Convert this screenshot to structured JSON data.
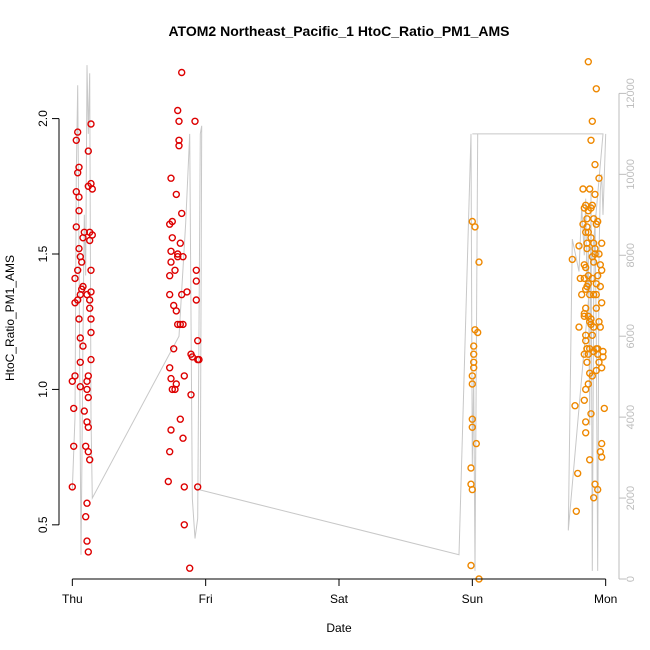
{
  "chart_data": {
    "type": "scatter",
    "title": "ATOM2 Northeast_Pacific_1 HtoC_Ratio_PM1_AMS",
    "xlabel": "Date",
    "ylabel": "HtoC_Ratio_PM1_AMS",
    "x_unit": "day",
    "x_ticks": [
      {
        "value": 0,
        "label": "Thu"
      },
      {
        "value": 1,
        "label": "Fri"
      },
      {
        "value": 2,
        "label": "Sat"
      },
      {
        "value": 3,
        "label": "Sun"
      },
      {
        "value": 4,
        "label": "Mon"
      }
    ],
    "xlim": [
      -0.1,
      4.1
    ],
    "ylim": [
      0.3,
      2.22
    ],
    "y_ticks": [
      0.5,
      1.0,
      1.5,
      2.0
    ],
    "y_tick_labels": [
      "0.5",
      "1.0",
      "1.5",
      "2.0"
    ],
    "y2_ticks": [
      0,
      2000,
      4000,
      6000,
      8000,
      10000,
      12000
    ],
    "y2_tick_labels": [
      "0",
      "2000",
      "4000",
      "6000",
      "8000",
      "10000",
      "12000"
    ],
    "y2lim": [
      0,
      12850
    ],
    "colors": {
      "thu_fri": "#dd0000",
      "sun_mon": "#ee8800",
      "line": "#c8c8c8",
      "axis": "#000000",
      "axis2": "#bdbdbd"
    },
    "series": [
      {
        "color": "#dd0000",
        "points": [
          [
            0.0,
            0.64
          ],
          [
            0.0,
            1.03
          ],
          [
            0.01,
            0.79
          ],
          [
            0.01,
            0.93
          ],
          [
            0.02,
            1.05
          ],
          [
            0.02,
            1.32
          ],
          [
            0.02,
            1.41
          ],
          [
            0.03,
            1.6
          ],
          [
            0.03,
            1.92
          ],
          [
            0.03,
            1.73
          ],
          [
            0.04,
            1.95
          ],
          [
            0.04,
            1.8
          ],
          [
            0.04,
            1.44
          ],
          [
            0.04,
            1.33
          ],
          [
            0.05,
            1.82
          ],
          [
            0.05,
            1.71
          ],
          [
            0.05,
            1.66
          ],
          [
            0.05,
            1.52
          ],
          [
            0.05,
            1.26
          ],
          [
            0.06,
            1.49
          ],
          [
            0.06,
            1.35
          ],
          [
            0.06,
            1.19
          ],
          [
            0.06,
            1.1
          ],
          [
            0.06,
            1.01
          ],
          [
            0.07,
            1.37
          ],
          [
            0.07,
            1.47
          ],
          [
            0.08,
            1.56
          ],
          [
            0.08,
            1.38
          ],
          [
            0.08,
            1.16
          ],
          [
            0.09,
            1.58
          ],
          [
            0.09,
            0.92
          ],
          [
            0.1,
            0.53
          ],
          [
            0.1,
            0.79
          ],
          [
            0.11,
            0.44
          ],
          [
            0.11,
            0.58
          ],
          [
            0.11,
            1.0
          ],
          [
            0.11,
            1.03
          ],
          [
            0.11,
            0.88
          ],
          [
            0.11,
            1.35
          ],
          [
            0.12,
            0.77
          ],
          [
            0.12,
            0.97
          ],
          [
            0.12,
            0.86
          ],
          [
            0.12,
            1.88
          ],
          [
            0.12,
            1.75
          ],
          [
            0.12,
            0.4
          ],
          [
            0.12,
            1.05
          ],
          [
            0.13,
            0.74
          ],
          [
            0.13,
            1.3
          ],
          [
            0.13,
            1.58
          ],
          [
            0.13,
            1.55
          ],
          [
            0.13,
            1.33
          ],
          [
            0.14,
            1.21
          ],
          [
            0.14,
            1.11
          ],
          [
            0.14,
            1.36
          ],
          [
            0.14,
            1.44
          ],
          [
            0.14,
            1.26
          ],
          [
            0.14,
            1.98
          ],
          [
            0.14,
            1.76
          ],
          [
            0.15,
            1.74
          ],
          [
            0.15,
            1.57
          ],
          [
            0.72,
            0.66
          ],
          [
            0.73,
            0.77
          ],
          [
            0.73,
            1.08
          ],
          [
            0.73,
            1.35
          ],
          [
            0.73,
            1.42
          ],
          [
            0.73,
            1.61
          ],
          [
            0.74,
            1.47
          ],
          [
            0.74,
            1.51
          ],
          [
            0.74,
            1.78
          ],
          [
            0.74,
            1.04
          ],
          [
            0.74,
            0.85
          ],
          [
            0.75,
            1.62
          ],
          [
            0.75,
            1.56
          ],
          [
            0.75,
            1.0
          ],
          [
            0.76,
            1.31
          ],
          [
            0.76,
            1.15
          ],
          [
            0.77,
            1.0
          ],
          [
            0.77,
            1.44
          ],
          [
            0.78,
            1.72
          ],
          [
            0.78,
            1.29
          ],
          [
            0.78,
            1.02
          ],
          [
            0.79,
            2.03
          ],
          [
            0.79,
            1.24
          ],
          [
            0.79,
            1.49
          ],
          [
            0.79,
            1.5
          ],
          [
            0.8,
            1.9
          ],
          [
            0.8,
            1.99
          ],
          [
            0.8,
            1.92
          ],
          [
            0.81,
            1.24
          ],
          [
            0.81,
            0.89
          ],
          [
            0.81,
            1.54
          ],
          [
            0.82,
            2.17
          ],
          [
            0.82,
            1.65
          ],
          [
            0.82,
            1.35
          ],
          [
            0.83,
            1.49
          ],
          [
            0.83,
            1.24
          ],
          [
            0.83,
            0.82
          ],
          [
            0.84,
            1.05
          ],
          [
            0.84,
            0.5
          ],
          [
            0.84,
            0.64
          ],
          [
            0.86,
            1.36
          ],
          [
            0.88,
            0.34
          ],
          [
            0.89,
            0.98
          ],
          [
            0.89,
            1.13
          ],
          [
            0.9,
            1.12
          ],
          [
            0.92,
            1.99
          ],
          [
            0.93,
            1.44
          ],
          [
            0.93,
            1.4
          ],
          [
            0.93,
            1.33
          ],
          [
            0.94,
            1.18
          ],
          [
            0.94,
            0.64
          ],
          [
            0.94,
            1.11
          ],
          [
            0.95,
            1.11
          ]
        ]
      },
      {
        "color": "#ee8800",
        "points": [
          [
            2.99,
            0.35
          ],
          [
            2.99,
            0.71
          ],
          [
            2.99,
            0.65
          ],
          [
            3.0,
            0.89
          ],
          [
            3.0,
            1.05
          ],
          [
            3.0,
            1.02
          ],
          [
            3.0,
            0.86
          ],
          [
            3.0,
            0.63
          ],
          [
            3.0,
            1.62
          ],
          [
            3.01,
            1.08
          ],
          [
            3.01,
            1.13
          ],
          [
            3.01,
            1.16
          ],
          [
            3.01,
            1.1
          ],
          [
            3.02,
            1.6
          ],
          [
            3.02,
            1.22
          ],
          [
            3.03,
            0.8
          ],
          [
            3.04,
            1.21
          ],
          [
            3.05,
            1.47
          ],
          [
            3.05,
            0.3
          ],
          [
            3.75,
            1.48
          ],
          [
            3.77,
            0.94
          ],
          [
            3.78,
            0.55
          ],
          [
            3.79,
            0.69
          ],
          [
            3.8,
            1.53
          ],
          [
            3.8,
            1.23
          ],
          [
            3.81,
            1.41
          ],
          [
            3.82,
            1.35
          ],
          [
            3.83,
            1.61
          ],
          [
            3.83,
            1.74
          ],
          [
            3.84,
            1.28
          ],
          [
            3.84,
            1.41
          ],
          [
            3.84,
            1.46
          ],
          [
            3.84,
            1.13
          ],
          [
            3.84,
            1.27
          ],
          [
            3.84,
            0.96
          ],
          [
            3.84,
            1.67
          ],
          [
            3.85,
            1.68
          ],
          [
            3.85,
            1.58
          ],
          [
            3.85,
            1.45
          ],
          [
            3.85,
            1.37
          ],
          [
            3.85,
            1.3
          ],
          [
            3.85,
            1.2
          ],
          [
            3.85,
            1.0
          ],
          [
            3.85,
            0.84
          ],
          [
            3.85,
            1.18
          ],
          [
            3.85,
            0.88
          ],
          [
            3.86,
            1.15
          ],
          [
            3.86,
            1.15
          ],
          [
            3.86,
            1.1
          ],
          [
            3.86,
            1.6
          ],
          [
            3.86,
            1.38
          ],
          [
            3.86,
            1.52
          ],
          [
            3.86,
            1.63
          ],
          [
            3.86,
            1.54
          ],
          [
            3.87,
            1.66
          ],
          [
            3.87,
            1.42
          ],
          [
            3.87,
            1.39
          ],
          [
            3.87,
            1.58
          ],
          [
            3.87,
            2.21
          ],
          [
            3.87,
            1.27
          ],
          [
            3.87,
            1.02
          ],
          [
            3.87,
            1.13
          ],
          [
            3.88,
            1.35
          ],
          [
            3.88,
            1.25
          ],
          [
            3.88,
            1.15
          ],
          [
            3.88,
            1.06
          ],
          [
            3.88,
            1.74
          ],
          [
            3.88,
            0.74
          ],
          [
            3.89,
            1.24
          ],
          [
            3.89,
            1.26
          ],
          [
            3.89,
            0.91
          ],
          [
            3.89,
            1.67
          ],
          [
            3.89,
            1.56
          ],
          [
            3.89,
            1.92
          ],
          [
            3.9,
            1.41
          ],
          [
            3.9,
            1.49
          ],
          [
            3.9,
            1.68
          ],
          [
            3.9,
            1.05
          ],
          [
            3.9,
            1.2
          ],
          [
            3.9,
            1.99
          ],
          [
            3.91,
            1.63
          ],
          [
            3.91,
            1.54
          ],
          [
            3.91,
            1.47
          ],
          [
            3.91,
            1.35
          ],
          [
            3.91,
            1.23
          ],
          [
            3.91,
            1.14
          ],
          [
            3.91,
            0.6
          ],
          [
            3.92,
            1.83
          ],
          [
            3.92,
            1.72
          ],
          [
            3.92,
            1.52
          ],
          [
            3.92,
            1.5
          ],
          [
            3.92,
            0.65
          ],
          [
            3.93,
            2.11
          ],
          [
            3.93,
            1.61
          ],
          [
            3.93,
            1.39
          ],
          [
            3.93,
            1.35
          ],
          [
            3.93,
            1.3
          ],
          [
            3.93,
            1.15
          ],
          [
            3.93,
            1.07
          ],
          [
            3.94,
            1.62
          ],
          [
            3.94,
            1.42
          ],
          [
            3.94,
            1.15
          ],
          [
            3.94,
            1.13
          ],
          [
            3.94,
            0.63
          ],
          [
            3.95,
            1.78
          ],
          [
            3.95,
            1.5
          ],
          [
            3.95,
            1.25
          ],
          [
            3.95,
            1.1
          ],
          [
            3.96,
            1.46
          ],
          [
            3.96,
            1.23
          ],
          [
            3.96,
            0.77
          ],
          [
            3.96,
            1.38
          ],
          [
            3.97,
            1.54
          ],
          [
            3.97,
            1.44
          ],
          [
            3.97,
            1.32
          ],
          [
            3.97,
            1.08
          ],
          [
            3.97,
            0.75
          ],
          [
            3.97,
            0.8
          ],
          [
            3.98,
            1.12
          ],
          [
            3.98,
            1.14
          ],
          [
            3.99,
            0.93
          ]
        ]
      }
    ],
    "secondary_line": {
      "color": "#c8c8c8",
      "points": [
        [
          0.0,
          2200
        ],
        [
          0.02,
          4000
        ],
        [
          0.03,
          10000
        ],
        [
          0.04,
          12200
        ],
        [
          0.05,
          8000
        ],
        [
          0.06,
          3000
        ],
        [
          0.065,
          600
        ],
        [
          0.07,
          2300
        ],
        [
          0.08,
          6000
        ],
        [
          0.09,
          9000
        ],
        [
          0.1,
          7500
        ],
        [
          0.11,
          12700
        ],
        [
          0.12,
          11000
        ],
        [
          0.13,
          12500
        ],
        [
          0.14,
          4000
        ],
        [
          0.15,
          2000
        ],
        [
          0.8,
          6000
        ],
        [
          0.85,
          8800
        ],
        [
          0.88,
          11000
        ],
        [
          0.9,
          2000
        ],
        [
          0.92,
          1000
        ],
        [
          0.94,
          1500
        ],
        [
          0.96,
          11000
        ],
        [
          0.97,
          11200
        ],
        [
          0.96,
          2200
        ],
        [
          2.9,
          600
        ],
        [
          2.99,
          11000
        ],
        [
          3.0,
          2800
        ],
        [
          3.01,
          5000
        ],
        [
          3.02,
          200
        ],
        [
          3.04,
          11000
        ],
        [
          3.0,
          11000
        ],
        [
          3.98,
          11000
        ],
        [
          3.72,
          1200
        ],
        [
          3.75,
          8400
        ],
        [
          3.8,
          7600
        ],
        [
          3.82,
          9200
        ],
        [
          3.84,
          8000
        ],
        [
          3.85,
          9400
        ],
        [
          3.86,
          7000
        ],
        [
          3.87,
          8200
        ],
        [
          3.88,
          3800
        ],
        [
          3.89,
          9600
        ],
        [
          3.9,
          200
        ],
        [
          3.91,
          7000
        ],
        [
          3.92,
          9000
        ],
        [
          3.93,
          6000
        ],
        [
          3.94,
          200
        ],
        [
          3.95,
          8000
        ],
        [
          3.96,
          9600
        ],
        [
          3.97,
          10000
        ],
        [
          3.98,
          9000
        ],
        [
          4.0,
          11000
        ]
      ]
    }
  }
}
